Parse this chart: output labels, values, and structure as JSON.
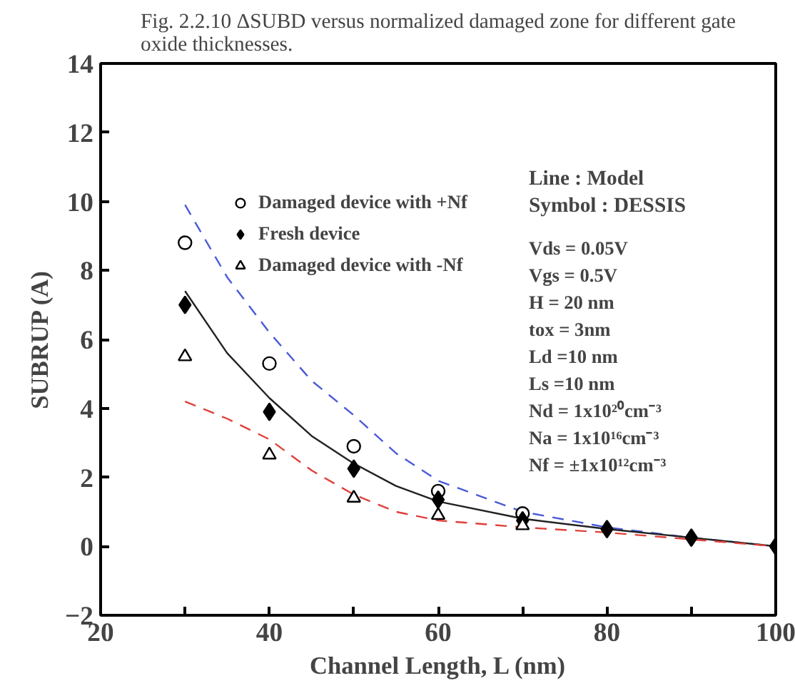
{
  "chart_data": {
    "type": "scatter",
    "title": "Fig. 2.2.10 ΔSUBD versus normalized damaged zone for different gate oxide thicknesses.",
    "xlabel": "Channel Length, L (nm)",
    "ylabel": "SUBRUP (A)",
    "xlim": [
      20,
      100
    ],
    "ylim": [
      -2,
      14
    ],
    "xticks": [
      20,
      {
        "value": 30,
        "label": null
      },
      40,
      {
        "value": 50,
        "label": null
      },
      60,
      {
        "value": 70,
        "label": null
      },
      80,
      {
        "value": 90,
        "label": null
      },
      100
    ],
    "yticks": [
      -2,
      0,
      2,
      4,
      6,
      8,
      10,
      12,
      14
    ],
    "grid": false,
    "legend": "top left",
    "annotations": [
      "Line : Model",
      "Symbol : DESSIS",
      "Vds = 0.05V",
      "Vgs = 0.5V",
      "H  = 20 nm",
      "tox = 3nm",
      "Ld =10 nm",
      "Ls =10 nm",
      "Nd = 1x10²⁰cm⁻³",
      "Na = 1x10¹⁶cm⁻³",
      "Nf = ±1x10¹²cm⁻³"
    ],
    "series": [
      {
        "type": "line",
        "line_style": "dashed",
        "color": "#4a5ad8",
        "x": [
          30,
          35,
          40,
          45,
          50,
          55,
          60,
          70,
          80,
          90,
          100
        ],
        "values": [
          9.9,
          7.8,
          6.2,
          4.8,
          3.8,
          2.7,
          1.9,
          1.0,
          0.55,
          0.25,
          0
        ]
      },
      {
        "type": "line",
        "line_style": "solid",
        "color": "#222222",
        "x": [
          30,
          35,
          40,
          45,
          50,
          55,
          60,
          70,
          80,
          90,
          100
        ],
        "values": [
          7.4,
          5.6,
          4.3,
          3.2,
          2.4,
          1.75,
          1.3,
          0.8,
          0.5,
          0.25,
          0
        ]
      },
      {
        "type": "line",
        "line_style": "dashed",
        "color": "#e0403a",
        "x": [
          30,
          35,
          40,
          45,
          50,
          55,
          60,
          70,
          80,
          90,
          100
        ],
        "values": [
          4.2,
          3.7,
          3.1,
          2.2,
          1.5,
          1.0,
          0.75,
          0.55,
          0.4,
          0.2,
          0
        ]
      },
      {
        "marker": "circle",
        "name": "Damaged device with +Nf",
        "color": "#000000",
        "x": [
          30,
          40,
          50,
          60,
          70
        ],
        "values": [
          8.8,
          5.3,
          2.9,
          1.6,
          0.95
        ]
      },
      {
        "marker": "diamond",
        "name": "Fresh device",
        "color": "#000000",
        "x": [
          30,
          40,
          50,
          60,
          70,
          80,
          90,
          100
        ],
        "values": [
          7.0,
          3.9,
          2.25,
          1.35,
          0.75,
          0.5,
          0.25,
          0
        ]
      },
      {
        "marker": "triangle",
        "name": "Damaged device with -Nf",
        "color": "#000000",
        "x": [
          30,
          40,
          50,
          60,
          70
        ],
        "values": [
          5.5,
          2.65,
          1.4,
          0.9,
          0.6
        ]
      }
    ]
  }
}
